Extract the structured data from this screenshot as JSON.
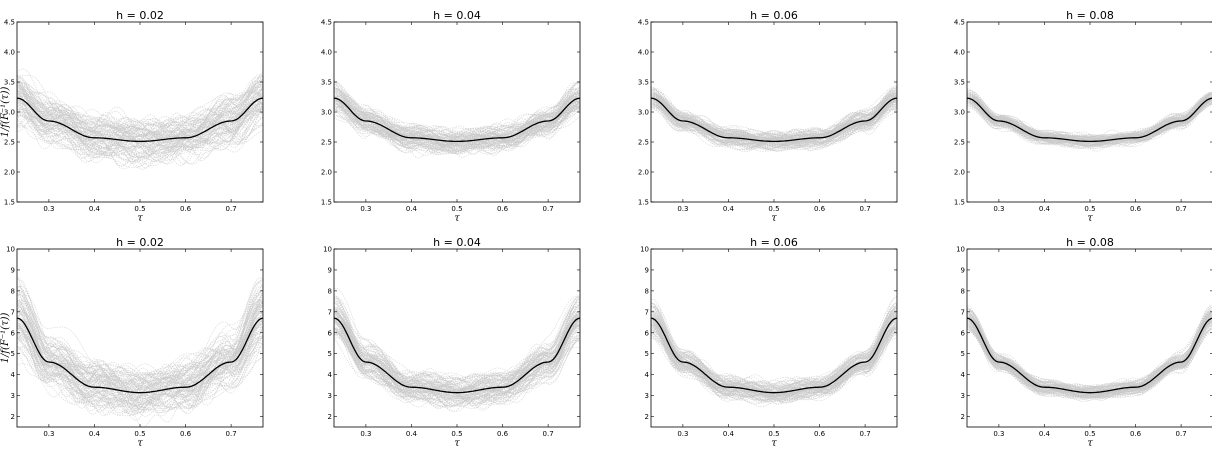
{
  "chart_data": [
    {
      "type": "line",
      "title": "h = 0.02",
      "xlabel": "τ",
      "ylabel": "1/f(F⁻¹(τ))",
      "xlim": [
        0.23,
        0.77
      ],
      "ylim": [
        1.5,
        4.5
      ],
      "xticks": [
        "0.3",
        "0.4",
        "0.5",
        "0.6",
        "0.7"
      ],
      "yticks": [
        "1.5",
        "2.0",
        "2.5",
        "3.0",
        "3.5",
        "4.0",
        "4.5"
      ],
      "true_curve": {
        "x": [
          0.23,
          0.3,
          0.4,
          0.5,
          0.6,
          0.7,
          0.77
        ],
        "y": [
          3.23,
          2.85,
          2.57,
          2.51,
          2.57,
          2.85,
          3.23
        ]
      },
      "simulated_curves": {
        "count": 100,
        "spread": 0.42,
        "color": "#c8c8c8"
      }
    },
    {
      "type": "line",
      "title": "h = 0.04",
      "xlabel": "τ",
      "ylabel": "",
      "xlim": [
        0.23,
        0.77
      ],
      "ylim": [
        1.5,
        4.5
      ],
      "xticks": [
        "0.3",
        "0.4",
        "0.5",
        "0.6",
        "0.7"
      ],
      "yticks": [
        "1.5",
        "2.0",
        "2.5",
        "3.0",
        "3.5",
        "4.0",
        "4.5"
      ],
      "true_curve": {
        "x": [
          0.23,
          0.3,
          0.4,
          0.5,
          0.6,
          0.7,
          0.77
        ],
        "y": [
          3.23,
          2.85,
          2.57,
          2.51,
          2.57,
          2.85,
          3.23
        ]
      },
      "simulated_curves": {
        "count": 100,
        "spread": 0.25,
        "color": "#c8c8c8"
      }
    },
    {
      "type": "line",
      "title": "h = 0.06",
      "xlabel": "τ",
      "ylabel": "",
      "xlim": [
        0.23,
        0.77
      ],
      "ylim": [
        1.5,
        4.5
      ],
      "xticks": [
        "0.3",
        "0.4",
        "0.5",
        "0.6",
        "0.7"
      ],
      "yticks": [
        "1.5",
        "2.0",
        "2.5",
        "3.0",
        "3.5",
        "4.0",
        "4.5"
      ],
      "true_curve": {
        "x": [
          0.23,
          0.3,
          0.4,
          0.5,
          0.6,
          0.7,
          0.77
        ],
        "y": [
          3.23,
          2.85,
          2.57,
          2.51,
          2.57,
          2.85,
          3.23
        ]
      },
      "simulated_curves": {
        "count": 100,
        "spread": 0.18,
        "color": "#c8c8c8"
      }
    },
    {
      "type": "line",
      "title": "h = 0.08",
      "xlabel": "τ",
      "ylabel": "",
      "xlim": [
        0.23,
        0.77
      ],
      "ylim": [
        1.5,
        4.5
      ],
      "xticks": [
        "0.3",
        "0.4",
        "0.5",
        "0.6",
        "0.7"
      ],
      "yticks": [
        "1.5",
        "2.0",
        "2.5",
        "3.0",
        "3.5",
        "4.0",
        "4.5"
      ],
      "true_curve": {
        "x": [
          0.23,
          0.3,
          0.4,
          0.5,
          0.6,
          0.7,
          0.77
        ],
        "y": [
          3.23,
          2.85,
          2.57,
          2.51,
          2.57,
          2.85,
          3.23
        ]
      },
      "simulated_curves": {
        "count": 100,
        "spread": 0.13,
        "color": "#c8c8c8"
      }
    },
    {
      "type": "line",
      "title": "h = 0.02",
      "xlabel": "τ",
      "ylabel": "1/f(F⁻¹(τ))",
      "xlim": [
        0.23,
        0.77
      ],
      "ylim": [
        1.5,
        10
      ],
      "xticks": [
        "0.3",
        "0.4",
        "0.5",
        "0.6",
        "0.7"
      ],
      "yticks": [
        "2",
        "3",
        "4",
        "5",
        "6",
        "7",
        "8",
        "9",
        "10"
      ],
      "true_curve": {
        "x": [
          0.23,
          0.3,
          0.4,
          0.5,
          0.6,
          0.7,
          0.77
        ],
        "y": [
          6.7,
          4.6,
          3.4,
          3.14,
          3.4,
          4.6,
          6.7
        ]
      },
      "simulated_curves": {
        "count": 100,
        "spread": 0.5,
        "color": "#c8c8c8"
      }
    },
    {
      "type": "line",
      "title": "h = 0.04",
      "xlabel": "τ",
      "ylabel": "",
      "xlim": [
        0.23,
        0.77
      ],
      "ylim": [
        1.5,
        10
      ],
      "xticks": [
        "0.3",
        "0.4",
        "0.5",
        "0.6",
        "0.7"
      ],
      "yticks": [
        "2",
        "3",
        "4",
        "5",
        "6",
        "7",
        "8",
        "9",
        "10"
      ],
      "true_curve": {
        "x": [
          0.23,
          0.3,
          0.4,
          0.5,
          0.6,
          0.7,
          0.77
        ],
        "y": [
          6.7,
          4.6,
          3.4,
          3.14,
          3.4,
          4.6,
          6.7
        ]
      },
      "simulated_curves": {
        "count": 100,
        "spread": 0.3,
        "color": "#c8c8c8"
      }
    },
    {
      "type": "line",
      "title": "h = 0.06",
      "xlabel": "τ",
      "ylabel": "",
      "xlim": [
        0.23,
        0.77
      ],
      "ylim": [
        1.5,
        10
      ],
      "xticks": [
        "0.3",
        "0.4",
        "0.5",
        "0.6",
        "0.7"
      ],
      "yticks": [
        "2",
        "3",
        "4",
        "5",
        "6",
        "7",
        "8",
        "9",
        "10"
      ],
      "true_curve": {
        "x": [
          0.23,
          0.3,
          0.4,
          0.5,
          0.6,
          0.7,
          0.77
        ],
        "y": [
          6.7,
          4.6,
          3.4,
          3.14,
          3.4,
          4.6,
          6.7
        ]
      },
      "simulated_curves": {
        "count": 100,
        "spread": 0.22,
        "color": "#c8c8c8"
      }
    },
    {
      "type": "line",
      "title": "h = 0.08",
      "xlabel": "τ",
      "ylabel": "",
      "xlim": [
        0.23,
        0.77
      ],
      "ylim": [
        1.5,
        10
      ],
      "xticks": [
        "0.3",
        "0.4",
        "0.5",
        "0.6",
        "0.7"
      ],
      "yticks": [
        "2",
        "3",
        "4",
        "5",
        "6",
        "7",
        "8",
        "9",
        "10"
      ],
      "true_curve": {
        "x": [
          0.23,
          0.3,
          0.4,
          0.5,
          0.6,
          0.7,
          0.77
        ],
        "y": [
          6.7,
          4.6,
          3.4,
          3.14,
          3.4,
          4.6,
          6.7
        ]
      },
      "simulated_curves": {
        "count": 100,
        "spread": 0.15,
        "color": "#c8c8c8"
      }
    }
  ]
}
